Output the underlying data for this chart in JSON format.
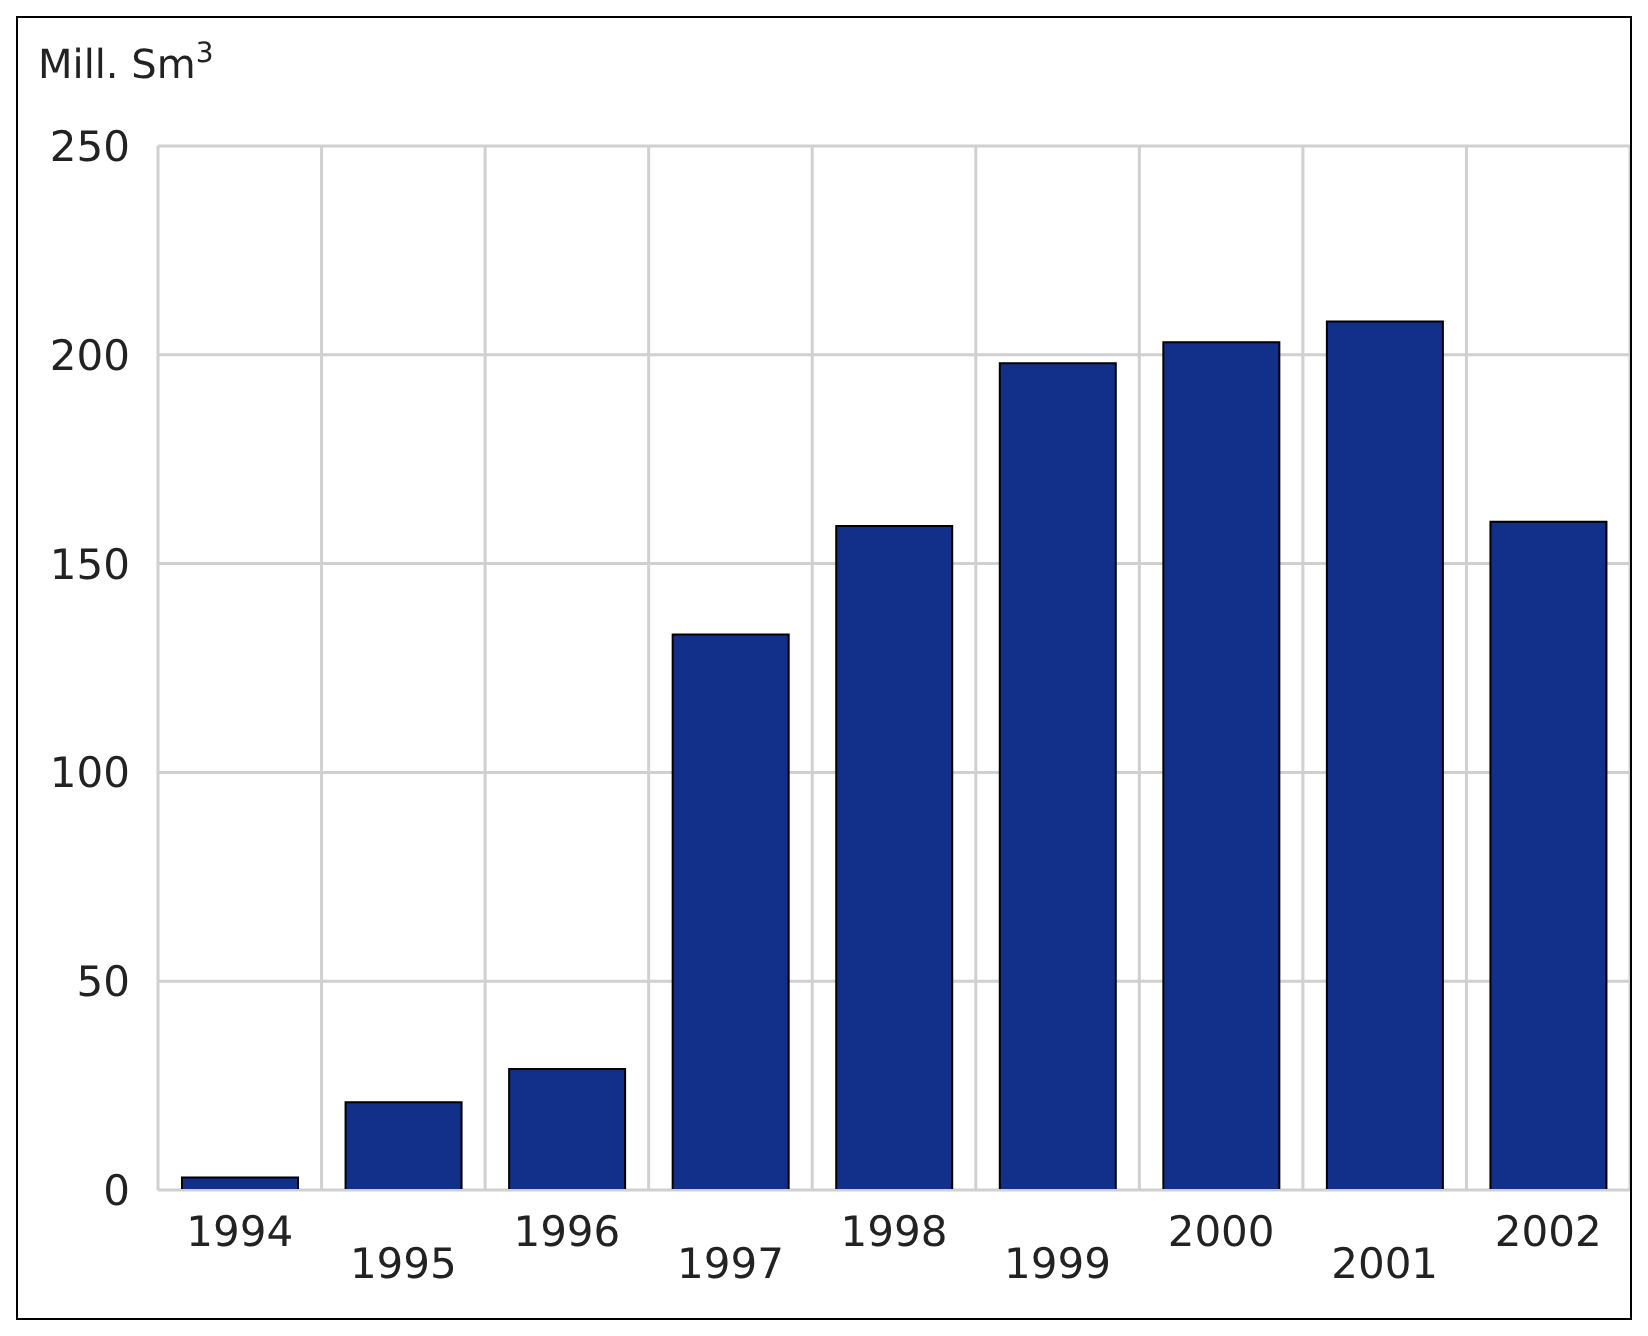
{
  "chart_data": {
    "type": "bar",
    "ylabel": "Mill. Sm$^{3}$",
    "categories": [
      "1994",
      "1995",
      "1996",
      "1997",
      "1998",
      "1999",
      "2000",
      "2001",
      "2002"
    ],
    "values": [
      3,
      21,
      29,
      133,
      159,
      198,
      203,
      208,
      160
    ],
    "color": "#12308a",
    "ylim": [
      0,
      250
    ],
    "yticks": [
      0,
      50,
      100,
      150,
      200,
      250
    ],
    "grid": true
  }
}
